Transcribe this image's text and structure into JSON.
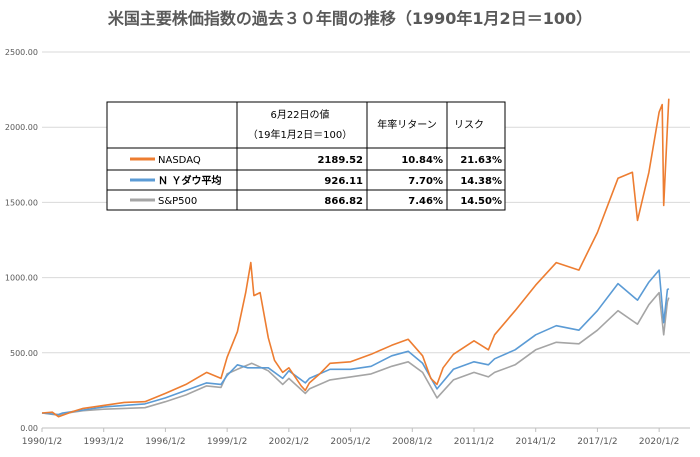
{
  "chart_data": {
    "type": "line",
    "title": "米国主要株価指数の過去３０年間の推移（1990年1月2日＝100）",
    "ylim": [
      0,
      2500
    ],
    "yticks": [
      "0.00",
      "500.00",
      "1000.00",
      "1500.00",
      "2000.00",
      "2500.00"
    ],
    "xticks": [
      "1990/1/2",
      "1993/1/2",
      "1996/1/2",
      "1999/1/2",
      "2002/1/2",
      "2005/1/2",
      "2008/1/2",
      "2011/1/2",
      "2014/1/2",
      "2017/1/2",
      "2020/1/2"
    ],
    "xlim": [
      1990.0,
      2021.5
    ],
    "grid": true,
    "legend_placement": "inside table, upper-left",
    "series": [
      {
        "name": "NASDAQ",
        "color": "#ed7d31",
        "x": [
          1990.0,
          1990.5,
          1990.8,
          1991.0,
          1991.5,
          1992.0,
          1993.0,
          1994.0,
          1995.0,
          1996.0,
          1997.0,
          1998.0,
          1998.7,
          1999.0,
          1999.5,
          1999.9,
          2000.15,
          2000.3,
          2000.6,
          2001.0,
          2001.3,
          2001.7,
          2002.0,
          2002.6,
          2002.8,
          2003.0,
          2003.5,
          2004.0,
          2005.0,
          2006.0,
          2007.0,
          2007.8,
          2008.5,
          2008.9,
          2009.2,
          2009.5,
          2010.0,
          2011.0,
          2011.7,
          2012.0,
          2013.0,
          2014.0,
          2015.0,
          2016.1,
          2017.0,
          2018.0,
          2018.7,
          2018.95,
          2019.5,
          2020.0,
          2020.15,
          2020.22,
          2020.4,
          2020.47
        ],
        "values": [
          100,
          105,
          75,
          85,
          110,
          130,
          150,
          170,
          175,
          230,
          290,
          370,
          330,
          470,
          640,
          900,
          1100,
          880,
          900,
          600,
          450,
          370,
          400,
          280,
          250,
          300,
          360,
          430,
          440,
          490,
          550,
          590,
          480,
          330,
          290,
          400,
          490,
          580,
          520,
          620,
          780,
          950,
          1100,
          1050,
          1300,
          1660,
          1700,
          1380,
          1700,
          2100,
          2150,
          1480,
          2000,
          2189.52
        ]
      },
      {
        "name": "Ｎ Ｙダウ平均",
        "color": "#5b9bd5",
        "x": [
          1990.0,
          1990.8,
          1991.0,
          1992.0,
          1993.0,
          1994.0,
          1995.0,
          1996.0,
          1997.0,
          1998.0,
          1998.7,
          1999.0,
          1999.5,
          2000.0,
          2001.0,
          2001.7,
          2002.0,
          2002.8,
          2003.0,
          2004.0,
          2005.0,
          2006.0,
          2007.0,
          2007.8,
          2008.5,
          2009.2,
          2010.0,
          2011.0,
          2011.7,
          2012.0,
          2013.0,
          2014.0,
          2015.0,
          2016.1,
          2017.0,
          2018.0,
          2018.95,
          2019.5,
          2020.0,
          2020.22,
          2020.4,
          2020.47
        ],
        "values": [
          100,
          90,
          100,
          120,
          140,
          150,
          160,
          200,
          250,
          300,
          290,
          350,
          420,
          400,
          400,
          330,
          380,
          300,
          330,
          390,
          390,
          410,
          480,
          510,
          430,
          260,
          390,
          440,
          420,
          460,
          520,
          620,
          680,
          650,
          780,
          960,
          850,
          970,
          1050,
          700,
          920,
          926.11
        ]
      },
      {
        "name": "S&P500",
        "color": "#a5a5a5",
        "x": [
          1990.0,
          1990.8,
          1991.0,
          1992.0,
          1993.0,
          1994.0,
          1995.0,
          1996.0,
          1997.0,
          1998.0,
          1998.7,
          1999.0,
          1999.5,
          2000.2,
          2001.0,
          2001.7,
          2002.0,
          2002.8,
          2003.0,
          2004.0,
          2005.0,
          2006.0,
          2007.0,
          2007.8,
          2008.5,
          2009.2,
          2010.0,
          2011.0,
          2011.7,
          2012.0,
          2013.0,
          2014.0,
          2015.0,
          2016.1,
          2017.0,
          2018.0,
          2018.95,
          2019.5,
          2020.0,
          2020.22,
          2020.4,
          2020.47
        ],
        "values": [
          100,
          85,
          95,
          115,
          125,
          130,
          135,
          175,
          220,
          280,
          270,
          360,
          390,
          430,
          380,
          290,
          330,
          230,
          260,
          320,
          340,
          360,
          410,
          440,
          370,
          200,
          320,
          370,
          340,
          370,
          420,
          520,
          570,
          560,
          650,
          780,
          690,
          820,
          900,
          620,
          840,
          866.82
        ]
      }
    ]
  },
  "table": {
    "headers": [
      "6月22日の値",
      "（19年1月2日＝100）",
      "年率リターン",
      "リスク"
    ],
    "rows": [
      {
        "name": "NASDAQ",
        "color": "#ed7d31",
        "value": "2189.52",
        "return": "10.84%",
        "risk": "21.63%"
      },
      {
        "name": "Ｎ Ｙダウ平均",
        "color": "#5b9bd5",
        "value": "926.11",
        "return": "7.70%",
        "risk": "14.38%"
      },
      {
        "name": "S&P500",
        "color": "#a5a5a5",
        "value": "866.82",
        "return": "7.46%",
        "risk": "14.50%"
      }
    ]
  }
}
